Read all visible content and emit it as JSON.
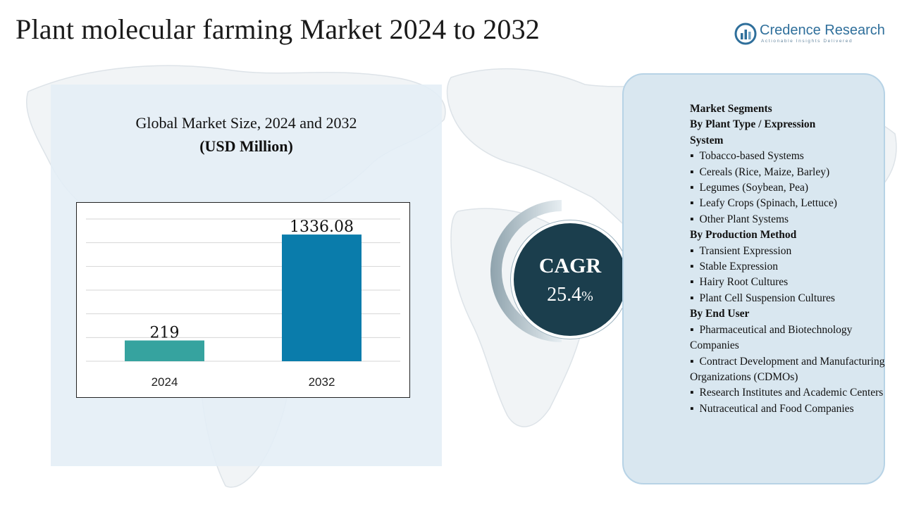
{
  "title": "Plant molecular  farming Market 2024 to 2032",
  "logo": {
    "name": "Credence Research",
    "tagline": "Actionable Insights Delivered",
    "icon": "bar-chart-logo-icon"
  },
  "chart_panel": {
    "title": "Global Market Size, 2024 and 2032",
    "subtitle": "(USD Million)"
  },
  "chart_data": {
    "type": "bar",
    "title": "Global Market Size, 2024 and 2032",
    "subtitle": "(USD Million)",
    "categories": [
      "2024",
      "2032"
    ],
    "values": [
      219,
      1336.08
    ],
    "value_labels": [
      "219",
      "1336.08"
    ],
    "bar_colors": [
      "#36a39f",
      "#0a7cab"
    ],
    "ylim": [
      0,
      1500
    ],
    "grid": true,
    "xlabel": "",
    "ylabel": ""
  },
  "cagr": {
    "label": "CAGR",
    "value": "25.4",
    "unit": "%"
  },
  "segments": [
    {
      "kind": "head",
      "text": "Market Segments"
    },
    {
      "kind": "head",
      "text": "By Plant Type / Expression"
    },
    {
      "kind": "head",
      "text": "System"
    },
    {
      "kind": "item",
      "text": "Tobacco-based Systems"
    },
    {
      "kind": "item",
      "text": "Cereals (Rice, Maize, Barley)"
    },
    {
      "kind": "item",
      "text": "Legumes (Soybean, Pea)"
    },
    {
      "kind": "item",
      "text": "Leafy Crops (Spinach, Lettuce)"
    },
    {
      "kind": "item",
      "text": "Other Plant Systems"
    },
    {
      "kind": "head",
      "text": "By Production Method"
    },
    {
      "kind": "item",
      "text": "Transient Expression"
    },
    {
      "kind": "item",
      "text": "Stable Expression"
    },
    {
      "kind": "item",
      "text": "Hairy Root Cultures"
    },
    {
      "kind": "item",
      "text": "Plant Cell Suspension Cultures"
    },
    {
      "kind": "head",
      "text": "By End User"
    },
    {
      "kind": "item",
      "text": "Pharmaceutical and Biotechnology   Companies"
    },
    {
      "kind": "item",
      "text": "Contract Development and Manufacturing Organizations (CDMOs)"
    },
    {
      "kind": "item",
      "text": "Research Institutes and Academic Centers"
    },
    {
      "kind": "item",
      "text": "Nutraceutical and Food Companies"
    }
  ],
  "colors": {
    "panel_bg": "#e4eef6",
    "cagr_circle": "#1b3e4d",
    "segment_panel": "#d9e7f0",
    "logo": "#2f6f9b"
  }
}
